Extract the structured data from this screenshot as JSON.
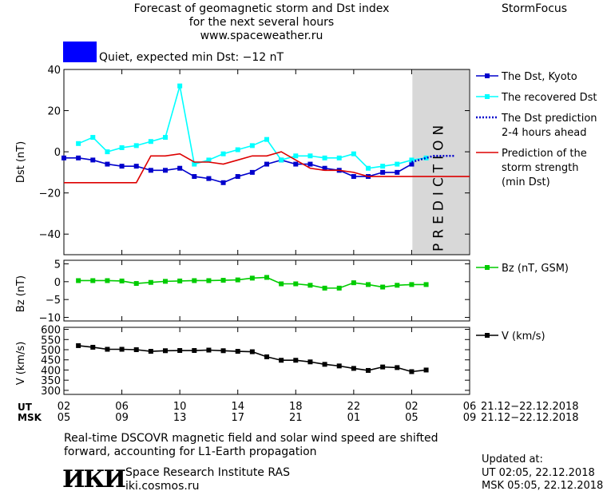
{
  "header": {
    "title_line1": "Forecast of geomagnetic storm and Dst index",
    "title_line2": "for the next several hours",
    "title_line3": "www.spaceweather.ru",
    "brand": "StormFocus",
    "status_color": "#0000ff",
    "status_text": "Quiet, expected min Dst: −12 nT"
  },
  "footer": {
    "note_line1": "Real-time DSCOVR magnetic field and solar wind speed are shifted",
    "note_line2": "forward, accounting for L1-Earth propagation",
    "institute": "Space Research Institute RAS",
    "website": "iki.cosmos.ru",
    "logo_text": "ИКИ",
    "updated_label": "Updated at:",
    "updated_ut": "UT   02:05, 22.12.2018",
    "updated_msk": "MSK 05:05, 22.12.2018"
  },
  "time_axis": {
    "ut_label": "UT",
    "msk_label": "MSK",
    "ut_ticks": [
      "02",
      "06",
      "10",
      "14",
      "18",
      "22",
      "02",
      "06"
    ],
    "msk_ticks": [
      "05",
      "09",
      "13",
      "17",
      "21",
      "01",
      "05",
      "09"
    ],
    "ut_range": "21.12−22.12.2018",
    "msk_range": "21.12−22.12.2018"
  },
  "chart_data": [
    {
      "type": "line",
      "ylabel": "Dst (nT)",
      "ylim": [
        -50,
        40
      ],
      "yticks": [
        40,
        20,
        0,
        -20,
        -40
      ],
      "x_unit": "hours",
      "xlim": [
        2,
        30
      ],
      "prediction_label": "PREDICTION",
      "prediction_region": [
        30,
        30
      ],
      "series": [
        {
          "name": "The Dst, Kyoto",
          "color": "#0000cc",
          "x": [
            2,
            3,
            4,
            5,
            6,
            7,
            8,
            9,
            10,
            11,
            12,
            13,
            14,
            15,
            16,
            17,
            18,
            19,
            20,
            21,
            22,
            23,
            24,
            25,
            26
          ],
          "values": [
            -3,
            -3,
            -4,
            -6,
            -7,
            -7,
            -9,
            -9,
            -8,
            -12,
            -13,
            -15,
            -12,
            -10,
            -6,
            -4,
            -6,
            -6,
            -8,
            -9,
            -12,
            -12,
            -10,
            -10,
            -6
          ]
        },
        {
          "name": "The recovered Dst",
          "color": "#00ffff",
          "x": [
            3,
            4,
            5,
            6,
            7,
            8,
            9,
            10,
            11,
            12,
            13,
            14,
            15,
            16,
            17,
            18,
            19,
            20,
            21,
            22,
            23,
            24,
            25,
            26,
            27
          ],
          "values": [
            4,
            7,
            0,
            2,
            3,
            5,
            7,
            32,
            -6,
            -4,
            -1,
            1,
            3,
            6,
            -4,
            -2,
            -2,
            -3,
            -3,
            -1,
            -8,
            -7,
            -6,
            -4,
            -3
          ]
        },
        {
          "name": "The Dst prediction\n2-4 hours ahead",
          "color": "#0000cc",
          "x": [
            26,
            26.5,
            27,
            27.5,
            28,
            28.5,
            29
          ],
          "values": [
            -5,
            -4,
            -3,
            -2,
            -2,
            -2,
            -2
          ]
        },
        {
          "name": "Prediction of the\nstorm strength\n(min Dst)",
          "color": "#dd0000",
          "x": [
            2,
            7,
            8,
            9,
            10,
            11,
            12,
            13,
            14,
            15,
            16,
            17,
            18,
            19,
            20,
            21,
            22,
            23,
            24,
            25,
            26,
            27,
            28,
            29,
            30
          ],
          "values": [
            -15,
            -15,
            -2,
            -2,
            -1,
            -5,
            -5,
            -6,
            -4,
            -2,
            -2,
            0,
            -4,
            -8,
            -9,
            -9,
            -10,
            -12,
            -12,
            -12,
            -12,
            -12,
            -12,
            -12,
            -12
          ]
        }
      ]
    },
    {
      "type": "line",
      "ylabel": "Bz (nT)",
      "ylim": [
        -11,
        6
      ],
      "yticks": [
        5,
        0,
        -5,
        -10
      ],
      "series": [
        {
          "name": "Bz (nT, GSM)",
          "color": "#00cc00",
          "x": [
            3,
            4,
            5,
            6,
            7,
            8,
            9,
            10,
            11,
            12,
            13,
            14,
            15,
            16,
            17,
            18,
            19,
            20,
            21,
            22,
            23,
            24,
            25,
            26,
            27
          ],
          "values": [
            0.3,
            0.3,
            0.3,
            0.2,
            -0.5,
            -0.2,
            0.1,
            0.2,
            0.3,
            0.3,
            0.4,
            0.5,
            1.0,
            1.2,
            -0.6,
            -0.6,
            -1.0,
            -1.8,
            -1.8,
            -0.3,
            -0.8,
            -1.5,
            -1.0,
            -0.8,
            -0.8
          ]
        }
      ]
    },
    {
      "type": "line",
      "ylabel": "V (km/s)",
      "ylim": [
        280,
        610
      ],
      "yticks": [
        600,
        550,
        500,
        450,
        400,
        350,
        300
      ],
      "series": [
        {
          "name": "V (km/s)",
          "color": "#000000",
          "x": [
            3,
            4,
            5,
            6,
            7,
            8,
            9,
            10,
            11,
            12,
            13,
            14,
            15,
            16,
            17,
            18,
            19,
            20,
            21,
            22,
            23,
            24,
            25,
            26,
            27
          ],
          "values": [
            520,
            512,
            502,
            502,
            500,
            492,
            495,
            496,
            496,
            498,
            495,
            492,
            490,
            465,
            448,
            448,
            440,
            428,
            420,
            408,
            398,
            415,
            412,
            392,
            400
          ]
        }
      ]
    }
  ]
}
